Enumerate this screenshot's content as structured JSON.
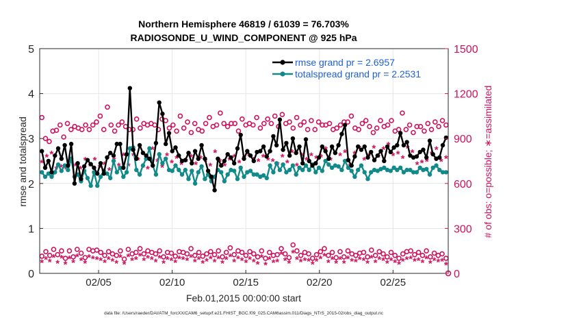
{
  "chart_data": {
    "type": "line",
    "title_line1": "Northern Hemisphere 46819 / 61039 = 76.703%",
    "title_line2": "RADIOSONDE_U_WIND_COMPONENT @ 925 hPa",
    "xlabel": "Feb.01,2015 00:00:00 start",
    "ylabel_left": "rmse and totalspread",
    "ylabel_right": "# of obs: o=possible; ∗=assimilated",
    "footer": "data file: /Users/raeder/DAI/ATM_forcXX/CAM6_setup/f.e21.FHIST_BGC.f09_025.CAM6assim.011/Diags_NTrS_2015-02/obs_diag_output.nc",
    "x_range_days": [
      1,
      28.75
    ],
    "xticks": [
      {
        "day": 5,
        "label": "02/05"
      },
      {
        "day": 10,
        "label": "02/10"
      },
      {
        "day": 15,
        "label": "02/15"
      },
      {
        "day": 20,
        "label": "02/20"
      },
      {
        "day": 25,
        "label": "02/25"
      }
    ],
    "ylim_left": [
      0,
      5
    ],
    "yticks_left": [
      "0",
      "1",
      "2",
      "3",
      "4",
      "5"
    ],
    "ylim_right": [
      0,
      1500
    ],
    "yticks_right": [
      "0",
      "300",
      "600",
      "900",
      "1200",
      "1500"
    ],
    "colors": {
      "rmse": "#000000",
      "spread": "#128a8a",
      "obs": "#d0105c",
      "legend_text": "#1f5fd6",
      "grid": "#e6e6e6"
    },
    "legend": [
      {
        "name": "rmse",
        "label": "rmse grand pr = 2.6957"
      },
      {
        "name": "spread",
        "label": "totalspread grand pr = 2.2531"
      }
    ],
    "series": [
      {
        "name": "rmse",
        "axis": "left",
        "values": [
          2.72,
          2.35,
          2.5,
          2.25,
          2.62,
          2.78,
          2.55,
          2.85,
          2.4,
          2.88,
          2.0,
          2.45,
          2.1,
          2.38,
          2.52,
          2.43,
          2.35,
          2.22,
          2.45,
          2.22,
          2.58,
          2.68,
          2.62,
          2.88,
          2.88,
          2.35,
          2.65,
          4.12,
          2.75,
          2.55,
          2.85,
          2.68,
          2.62,
          2.55,
          2.4,
          2.9,
          3.8,
          3.55,
          2.88,
          3.12,
          2.72,
          2.8,
          2.62,
          2.5,
          2.52,
          2.68,
          2.45,
          2.72,
          2.55,
          2.85,
          2.55,
          2.28,
          2.15,
          1.85,
          2.55,
          2.4,
          2.5,
          2.65,
          2.58,
          2.45,
          2.78,
          3.08,
          2.55,
          2.72,
          2.62,
          2.5,
          2.7,
          2.72,
          2.82,
          2.6,
          2.72,
          3.05,
          2.85,
          3.42,
          2.75,
          2.9,
          2.62,
          3.0,
          2.68,
          2.82,
          2.45,
          2.98,
          2.5,
          2.4,
          2.45,
          2.58,
          2.82,
          2.72,
          2.55,
          2.82,
          2.68,
          2.85,
          3.1,
          3.3,
          2.52,
          2.4,
          2.6,
          2.82,
          2.75,
          2.82,
          2.58,
          2.7,
          2.52,
          2.62,
          2.72,
          2.5,
          2.82,
          2.7,
          2.8,
          2.85,
          3.12,
          2.85,
          2.92,
          2.62,
          2.58,
          2.6,
          2.7,
          2.75,
          2.58,
          2.95,
          2.65,
          2.55,
          2.58,
          2.85,
          3.02
        ]
      },
      {
        "name": "totalspread",
        "axis": "left",
        "values": [
          2.25,
          2.15,
          2.22,
          2.15,
          2.25,
          2.42,
          2.28,
          2.4,
          2.3,
          2.55,
          2.15,
          2.2,
          2.05,
          2.28,
          2.12,
          1.95,
          2.25,
          1.95,
          2.15,
          2.28,
          2.22,
          2.12,
          2.5,
          2.25,
          2.35,
          2.15,
          2.25,
          2.78,
          2.8,
          2.3,
          2.2,
          2.4,
          2.55,
          2.78,
          2.4,
          2.2,
          2.65,
          2.45,
          2.55,
          2.3,
          2.28,
          2.4,
          2.3,
          2.2,
          2.3,
          2.1,
          2.28,
          2.0,
          2.25,
          2.38,
          2.1,
          2.2,
          2.05,
          2.15,
          2.3,
          2.25,
          2.05,
          2.2,
          2.3,
          2.28,
          2.1,
          2.35,
          2.15,
          2.25,
          2.28,
          2.2,
          2.2,
          2.15,
          2.18,
          2.12,
          2.4,
          2.25,
          2.45,
          2.3,
          2.42,
          2.25,
          2.3,
          2.4,
          2.2,
          2.35,
          2.3,
          2.4,
          2.3,
          2.42,
          2.25,
          2.35,
          2.28,
          2.5,
          2.42,
          2.35,
          2.4,
          2.38,
          2.3,
          2.5,
          2.35,
          2.28,
          2.15,
          2.3,
          2.4,
          2.25,
          2.1,
          2.25,
          2.3,
          2.28,
          2.32,
          2.35,
          2.3,
          2.28,
          2.35,
          2.3,
          2.35,
          2.25,
          2.3,
          2.3,
          2.25,
          2.25,
          2.35,
          2.3,
          2.32,
          2.2,
          2.35,
          2.4,
          2.3,
          2.25,
          2.25
        ]
      },
      {
        "name": "obs_possible_high",
        "axis": "right",
        "values": [
          1040,
          900,
          880,
          950,
          955,
          990,
          910,
          1000,
          960,
          980,
          970,
          960,
          990,
          960,
          990,
          1010,
          1050,
          960,
          1110,
          990,
          950,
          990,
          1010,
          980,
          960,
          960,
          1030,
          970,
          1000,
          990,
          1000,
          990,
          960,
          1030,
          1020,
          970,
          990,
          950,
          1050,
          970,
          1010,
          940,
          1000,
          960,
          950,
          1000,
          1040,
          980,
          990,
          1070,
          1000,
          980,
          1000,
          1000,
          950,
          1030,
          990,
          1000,
          990,
          1040,
          970,
          1000,
          1030,
          1000,
          1050,
          980,
          1060,
          1000,
          1010,
          970,
          1040,
          990,
          1010,
          960,
          1020,
          960,
          1010,
          990,
          990,
          1000,
          960,
          970,
          990,
          1010,
          1010,
          1050,
          970,
          960,
          1000,
          1020,
          980,
          940,
          970,
          1020,
          980,
          990,
          1020,
          950,
          960,
          1070,
          960,
          990,
          940,
          980,
          980,
          950,
          1000,
          960,
          1010,
          980,
          1020,
          990
        ]
      },
      {
        "name": "obs_assimilated_high",
        "axis": "right",
        "values": [
          740,
          780,
          800,
          700,
          710,
          700,
          740,
          720,
          700,
          760,
          720,
          760,
          710,
          730,
          690,
          760,
          720,
          790,
          720,
          790,
          760,
          710,
          700,
          830,
          750,
          710,
          790,
          740,
          770,
          730,
          750,
          780,
          730,
          770,
          750,
          720,
          810,
          750,
          720,
          760,
          780,
          740,
          770,
          790,
          760,
          750,
          780,
          760,
          750,
          730,
          780,
          740,
          810,
          720,
          790,
          760,
          790,
          770,
          780,
          830,
          760,
          800,
          790,
          810,
          720,
          800,
          840,
          760,
          790,
          840,
          780,
          830,
          860,
          790,
          800,
          770,
          840,
          810,
          730,
          740,
          750,
          800,
          830,
          750,
          770
        ]
      },
      {
        "name": "obs_possible_low",
        "axis": "right",
        "values": [
          115,
          145,
          120,
          160,
          125,
          150,
          100,
          150,
          110,
          160,
          135,
          105,
          160,
          150,
          155,
          140,
          120,
          145,
          130,
          120,
          150,
          95,
          160,
          130,
          140,
          165,
          130,
          150,
          140,
          130,
          150,
          110,
          140,
          135,
          115,
          145,
          140,
          130,
          165,
          120,
          140,
          115,
          130,
          145,
          125,
          150,
          110,
          140,
          170,
          125,
          150,
          140,
          120,
          145,
          130,
          110,
          150,
          100,
          140,
          120,
          125,
          165,
          130,
          105,
          190,
          150,
          120,
          140,
          130,
          100,
          125,
          145,
          165,
          120,
          140,
          105,
          145,
          110,
          150,
          130,
          120,
          135,
          140,
          110,
          155,
          120,
          145,
          130,
          110,
          140,
          120,
          100,
          130,
          145,
          150,
          125,
          140,
          120,
          150,
          110,
          135,
          120,
          130,
          100
        ]
      },
      {
        "name": "obs_assimilated_low",
        "axis": "right",
        "values": [
          75,
          95,
          80,
          110,
          70,
          105,
          65,
          100,
          75,
          115,
          90,
          70,
          110,
          100,
          95,
          90,
          75,
          95,
          85,
          70,
          110,
          65,
          115,
          90,
          95,
          120,
          90,
          105,
          95,
          80,
          105,
          70,
          95,
          90,
          75,
          100,
          95,
          90,
          110,
          80,
          95,
          70,
          85,
          100,
          80,
          100,
          70,
          95,
          115,
          80,
          100,
          90,
          75,
          95,
          80,
          65,
          110,
          60,
          95,
          75,
          80,
          130,
          90,
          70,
          140,
          95,
          80,
          90,
          85,
          65,
          85,
          100,
          120,
          75,
          95,
          70,
          95,
          70,
          100,
          85,
          80,
          95,
          90,
          70,
          105,
          75,
          95,
          90,
          70,
          90,
          75,
          65,
          85,
          95,
          100,
          85,
          90,
          75,
          100,
          70,
          90,
          80,
          85,
          60
        ]
      }
    ]
  }
}
